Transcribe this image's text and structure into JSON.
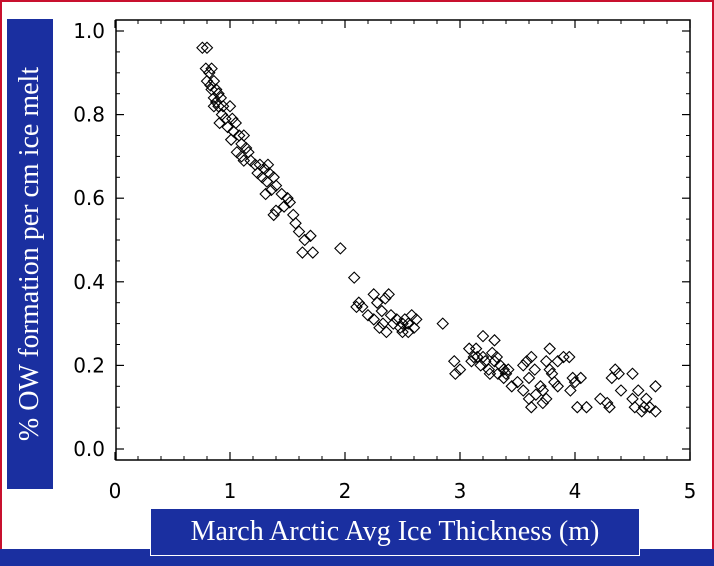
{
  "chart_data": {
    "type": "scatter",
    "xlabel": "March Arctic Avg Ice Thickness (m)",
    "ylabel": "% OW formation per cm ice melt",
    "xlim": [
      0,
      5
    ],
    "ylim": [
      0,
      1
    ],
    "x_ticks": [
      "0",
      "1",
      "2",
      "3",
      "4",
      "5"
    ],
    "y_ticks": [
      "0.0",
      "0.2",
      "0.4",
      "0.6",
      "0.8",
      "1.0"
    ],
    "marker": "diamond-open",
    "grid": false,
    "colors": {
      "frame": "#c8102e",
      "label_box": "#1a2fa0",
      "label_text": "#ffffff",
      "marker": "#000000"
    },
    "points": [
      [
        0.76,
        0.96
      ],
      [
        0.8,
        0.96
      ],
      [
        0.79,
        0.91
      ],
      [
        0.82,
        0.9
      ],
      [
        0.84,
        0.91
      ],
      [
        0.8,
        0.88
      ],
      [
        0.83,
        0.87
      ],
      [
        0.86,
        0.88
      ],
      [
        0.84,
        0.86
      ],
      [
        0.88,
        0.86
      ],
      [
        0.86,
        0.84
      ],
      [
        0.9,
        0.85
      ],
      [
        0.88,
        0.83
      ],
      [
        0.92,
        0.84
      ],
      [
        0.9,
        0.82
      ],
      [
        0.86,
        0.82
      ],
      [
        0.94,
        0.82
      ],
      [
        0.93,
        0.8
      ],
      [
        0.96,
        0.79
      ],
      [
        0.91,
        0.78
      ],
      [
        1.0,
        0.82
      ],
      [
        1.02,
        0.79
      ],
      [
        0.98,
        0.77
      ],
      [
        1.03,
        0.76
      ],
      [
        1.05,
        0.78
      ],
      [
        1.01,
        0.74
      ],
      [
        1.08,
        0.75
      ],
      [
        1.12,
        0.75
      ],
      [
        1.1,
        0.73
      ],
      [
        1.06,
        0.71
      ],
      [
        1.14,
        0.72
      ],
      [
        1.1,
        0.7
      ],
      [
        1.16,
        0.71
      ],
      [
        1.12,
        0.69
      ],
      [
        1.18,
        0.69
      ],
      [
        1.22,
        0.68
      ],
      [
        1.26,
        0.68
      ],
      [
        1.24,
        0.66
      ],
      [
        1.3,
        0.67
      ],
      [
        1.33,
        0.68
      ],
      [
        1.28,
        0.65
      ],
      [
        1.32,
        0.64
      ],
      [
        1.34,
        0.66
      ],
      [
        1.38,
        0.65
      ],
      [
        1.31,
        0.61
      ],
      [
        1.36,
        0.62
      ],
      [
        1.4,
        0.63
      ],
      [
        1.45,
        0.61
      ],
      [
        1.5,
        0.6
      ],
      [
        1.47,
        0.58
      ],
      [
        1.52,
        0.59
      ],
      [
        1.4,
        0.57
      ],
      [
        1.38,
        0.56
      ],
      [
        1.55,
        0.56
      ],
      [
        1.57,
        0.54
      ],
      [
        1.6,
        0.52
      ],
      [
        1.65,
        0.5
      ],
      [
        1.63,
        0.47
      ],
      [
        1.7,
        0.51
      ],
      [
        1.72,
        0.47
      ],
      [
        1.96,
        0.48
      ],
      [
        2.08,
        0.41
      ],
      [
        2.1,
        0.34
      ],
      [
        2.12,
        0.35
      ],
      [
        2.15,
        0.34
      ],
      [
        2.2,
        0.32
      ],
      [
        2.25,
        0.37
      ],
      [
        2.28,
        0.35
      ],
      [
        2.32,
        0.33
      ],
      [
        2.35,
        0.36
      ],
      [
        2.38,
        0.37
      ],
      [
        2.25,
        0.31
      ],
      [
        2.3,
        0.29
      ],
      [
        2.33,
        0.3
      ],
      [
        2.4,
        0.32
      ],
      [
        2.42,
        0.3
      ],
      [
        2.45,
        0.31
      ],
      [
        2.48,
        0.29
      ],
      [
        2.36,
        0.28
      ],
      [
        2.5,
        0.3
      ],
      [
        2.52,
        0.31
      ],
      [
        2.55,
        0.3
      ],
      [
        2.5,
        0.28
      ],
      [
        2.55,
        0.28
      ],
      [
        2.6,
        0.29
      ],
      [
        2.62,
        0.31
      ],
      [
        2.58,
        0.32
      ],
      [
        2.85,
        0.3
      ],
      [
        2.95,
        0.21
      ],
      [
        2.96,
        0.18
      ],
      [
        3.0,
        0.19
      ],
      [
        3.08,
        0.24
      ],
      [
        3.12,
        0.22
      ],
      [
        3.14,
        0.24
      ],
      [
        3.15,
        0.22
      ],
      [
        3.18,
        0.2
      ],
      [
        3.2,
        0.27
      ],
      [
        3.1,
        0.21
      ],
      [
        3.2,
        0.22
      ],
      [
        3.22,
        0.21
      ],
      [
        3.25,
        0.19
      ],
      [
        3.28,
        0.23
      ],
      [
        3.3,
        0.26
      ],
      [
        3.3,
        0.21
      ],
      [
        3.32,
        0.22
      ],
      [
        3.35,
        0.2
      ],
      [
        3.26,
        0.18
      ],
      [
        3.38,
        0.19
      ],
      [
        3.4,
        0.18
      ],
      [
        3.33,
        0.18
      ],
      [
        3.38,
        0.17
      ],
      [
        3.45,
        0.15
      ],
      [
        3.42,
        0.19
      ],
      [
        3.55,
        0.2
      ],
      [
        3.5,
        0.16
      ],
      [
        3.55,
        0.14
      ],
      [
        3.6,
        0.17
      ],
      [
        3.58,
        0.21
      ],
      [
        3.62,
        0.22
      ],
      [
        3.65,
        0.19
      ],
      [
        3.6,
        0.12
      ],
      [
        3.62,
        0.1
      ],
      [
        3.66,
        0.13
      ],
      [
        3.7,
        0.15
      ],
      [
        3.72,
        0.14
      ],
      [
        3.75,
        0.21
      ],
      [
        3.78,
        0.24
      ],
      [
        3.75,
        0.12
      ],
      [
        3.72,
        0.11
      ],
      [
        3.8,
        0.18
      ],
      [
        3.82,
        0.16
      ],
      [
        3.85,
        0.15
      ],
      [
        3.78,
        0.19
      ],
      [
        3.85,
        0.21
      ],
      [
        3.9,
        0.22
      ],
      [
        3.95,
        0.22
      ],
      [
        3.98,
        0.17
      ],
      [
        4.0,
        0.16
      ],
      [
        3.96,
        0.14
      ],
      [
        4.02,
        0.1
      ],
      [
        4.05,
        0.17
      ],
      [
        4.1,
        0.1
      ],
      [
        4.22,
        0.12
      ],
      [
        4.28,
        0.11
      ],
      [
        4.3,
        0.1
      ],
      [
        4.32,
        0.17
      ],
      [
        4.35,
        0.19
      ],
      [
        4.38,
        0.18
      ],
      [
        4.4,
        0.14
      ],
      [
        4.5,
        0.18
      ],
      [
        4.5,
        0.12
      ],
      [
        4.52,
        0.1
      ],
      [
        4.55,
        0.14
      ],
      [
        4.58,
        0.09
      ],
      [
        4.6,
        0.1
      ],
      [
        4.62,
        0.12
      ],
      [
        4.65,
        0.1
      ],
      [
        4.7,
        0.15
      ],
      [
        4.7,
        0.09
      ]
    ]
  }
}
